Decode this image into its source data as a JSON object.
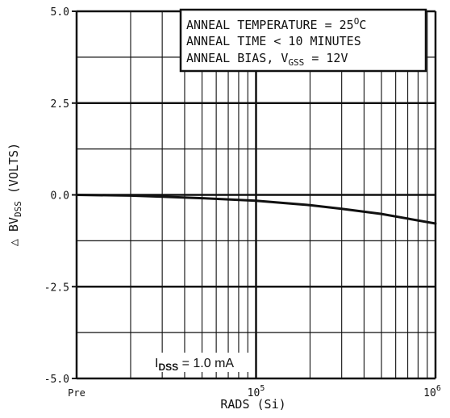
{
  "chart_data": {
    "type": "line",
    "x_scale": "log",
    "x_tick_labels": [
      "Pre",
      "10",
      "5",
      "10",
      "6"
    ],
    "x_ticks": [
      {
        "base": "",
        "exp": "",
        "label": "Pre",
        "value": 10000
      },
      {
        "base": "10",
        "exp": "5",
        "value": 100000
      },
      {
        "base": "10",
        "exp": "6",
        "value": 1000000
      }
    ],
    "xlim": [
      10000,
      1000000
    ],
    "ylim": [
      -5.0,
      5.0
    ],
    "y_ticks": [
      {
        "label": "5.0",
        "value": 5.0
      },
      {
        "label": "2.5",
        "value": 2.5
      },
      {
        "label": "0.0",
        "value": 0.0
      },
      {
        "label": "-2.5",
        "value": -2.5
      },
      {
        "label": "-5.0",
        "value": -5.0
      }
    ],
    "xlabel": "RADS (Si)",
    "ylabel": {
      "prefix": "△ BV",
      "sub": "DSS",
      "suffix": " (VOLTS)"
    },
    "grid": true,
    "series": [
      {
        "x": [
          10000,
          20000,
          30000,
          50000,
          100000,
          200000,
          300000,
          500000,
          1000000
        ],
        "y": [
          0.0,
          -0.02,
          -0.05,
          -0.09,
          -0.16,
          -0.28,
          -0.38,
          -0.52,
          -0.78
        ]
      }
    ],
    "annotation_box": {
      "line1": "ANNEAL TEMPERATURE = 25",
      "line1_sup": "O",
      "line1_end": "C",
      "line2": "ANNEAL TIME < 10 MINUTES",
      "line3_pre": "ANNEAL BIAS, V",
      "line3_sub": "GSS",
      "line3_post": " = 12V"
    },
    "condition_label": {
      "main": "I",
      "sub": "DSS",
      "value": " = 1.0 mA"
    }
  }
}
